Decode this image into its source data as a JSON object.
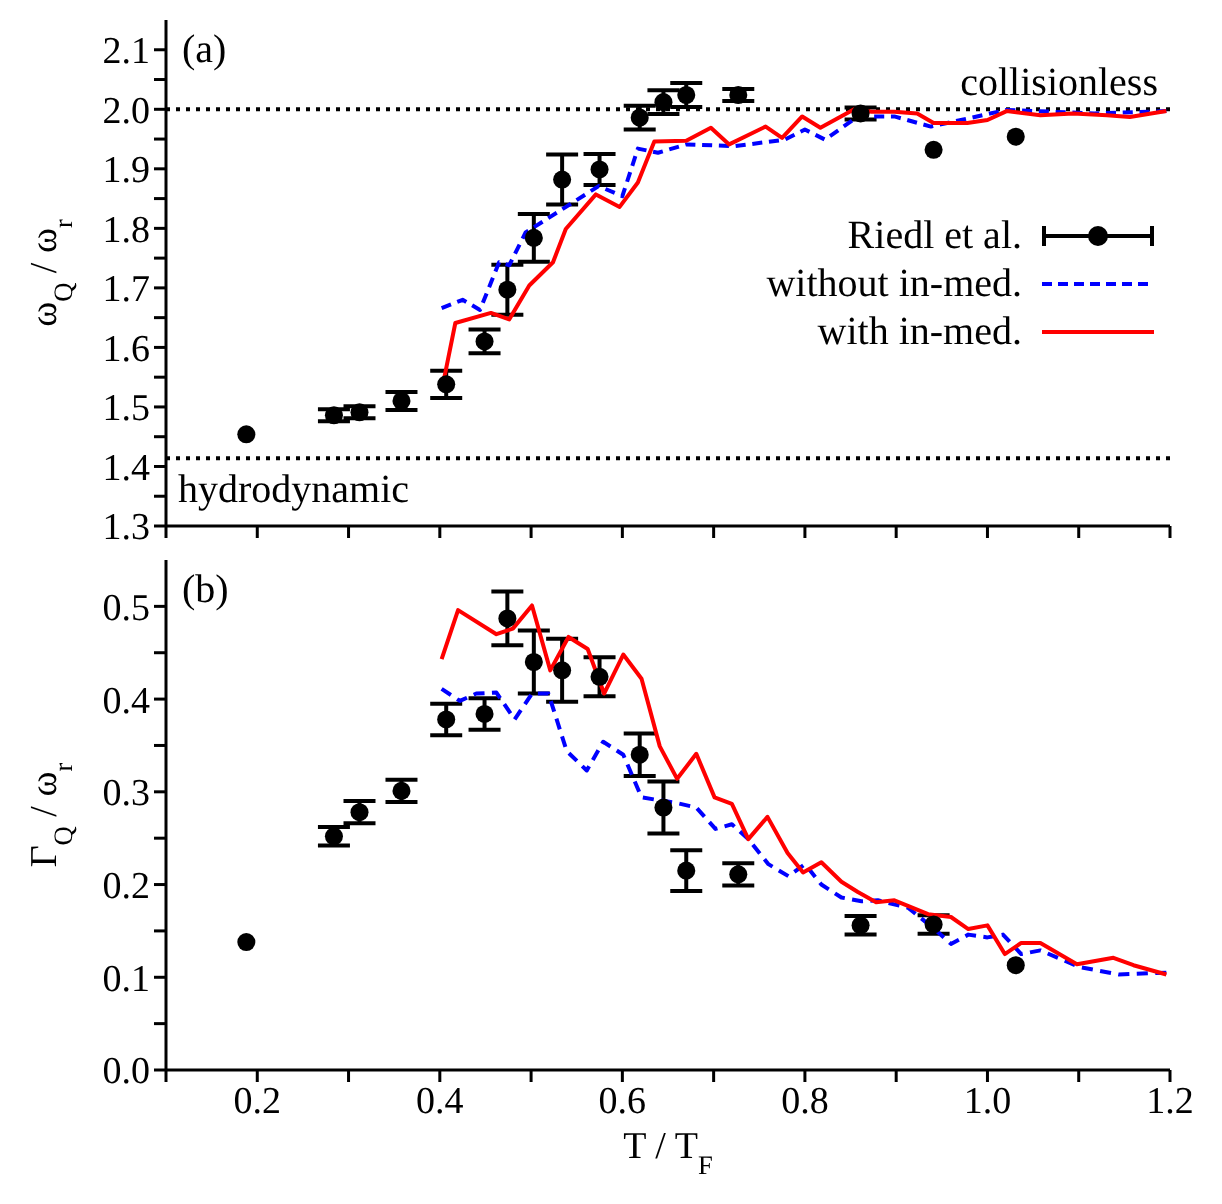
{
  "chart_data": [
    {
      "type": "line",
      "ylabel": "ω$_{Q}$ / ω$_{r}$",
      "annotations": [
        "(a)"
      ],
      "xlim": [
        0.1,
        1.2
      ],
      "xticks": [
        {
          "value": 0.1,
          "label": null
        },
        {
          "value": 0.2,
          "label": null
        },
        {
          "value": 0.3,
          "label": null
        },
        {
          "value": 0.4,
          "label": null
        },
        {
          "value": 0.5,
          "label": null
        },
        {
          "value": 0.6,
          "label": null
        },
        {
          "value": 0.7,
          "label": null
        },
        {
          "value": 0.8,
          "label": null
        },
        {
          "value": 0.9,
          "label": null
        },
        {
          "value": 1.0,
          "label": null
        },
        {
          "value": 1.1,
          "label": null
        },
        {
          "value": 1.2,
          "label": null
        }
      ],
      "ylim": [
        1.3,
        2.15
      ],
      "yticks": [
        {
          "value": 1.3,
          "label": "1.3"
        },
        {
          "value": 1.35,
          "label": null
        },
        {
          "value": 1.4,
          "label": "1.4"
        },
        {
          "value": 1.45,
          "label": null
        },
        {
          "value": 1.5,
          "label": "1.5"
        },
        {
          "value": 1.55,
          "label": null
        },
        {
          "value": 1.6,
          "label": "1.6"
        },
        {
          "value": 1.65,
          "label": null
        },
        {
          "value": 1.7,
          "label": "1.7"
        },
        {
          "value": 1.75,
          "label": null
        },
        {
          "value": 1.8,
          "label": "1.8"
        },
        {
          "value": 1.85,
          "label": null
        },
        {
          "value": 1.9,
          "label": "1.9"
        },
        {
          "value": 1.95,
          "label": null
        },
        {
          "value": 2.0,
          "label": "2.0"
        },
        {
          "value": 2.05,
          "label": null
        },
        {
          "value": 2.1,
          "label": "2.1"
        }
      ],
      "tick_labels": "y",
      "grid": false,
      "legend": "right",
      "ref_lines": [
        {
          "axis": "y",
          "value": 2.0,
          "label": "collisionless",
          "color": "#000000",
          "line_style": "dotted"
        },
        {
          "axis": "y",
          "value": 1.414,
          "label": "hydrodynamic",
          "color": "#000000",
          "line_style": "dotted"
        }
      ],
      "series": [
        {
          "name": "Riedl et al.",
          "type": "scatter",
          "color": "#000000",
          "marker": "circle",
          "x": [
            0.188,
            0.284,
            0.312,
            0.358,
            0.407,
            0.449,
            0.474,
            0.503,
            0.534,
            0.575,
            0.619,
            0.645,
            0.67,
            0.727,
            0.861,
            0.941,
            1.031
          ],
          "values": [
            1.454,
            1.486,
            1.491,
            1.51,
            1.538,
            1.61,
            1.697,
            1.784,
            1.882,
            1.899,
            1.986,
            2.012,
            2.024,
            2.024,
            1.993,
            1.932,
            1.954
          ],
          "errors": [
            null,
            0.01,
            0.01,
            0.015,
            0.023,
            0.02,
            0.042,
            0.04,
            0.042,
            0.026,
            0.02,
            0.02,
            0.02,
            0.01,
            0.01,
            null,
            null
          ]
        },
        {
          "name": "without in-med.",
          "type": "line",
          "color": "#0000ff",
          "marker": "none",
          "line_style": "dashed",
          "x": [
            0.402,
            0.425,
            0.444,
            0.465,
            0.476,
            0.494,
            0.534,
            0.574,
            0.6,
            0.617,
            0.639,
            0.67,
            0.723,
            0.778,
            0.8,
            0.822,
            0.858,
            0.898,
            0.938,
            0.971,
            1.021,
            1.117,
            1.196
          ],
          "values": [
            1.666,
            1.68,
            1.663,
            1.743,
            1.738,
            1.793,
            1.832,
            1.871,
            1.854,
            1.934,
            1.927,
            1.941,
            1.938,
            1.949,
            1.966,
            1.949,
            1.988,
            1.988,
            1.971,
            1.982,
            1.999,
            1.993,
            1.997
          ]
        },
        {
          "name": "with in-med.",
          "type": "line",
          "color": "#ff0000",
          "marker": "none",
          "line_style": "solid",
          "x": [
            0.402,
            0.417,
            0.456,
            0.476,
            0.498,
            0.524,
            0.538,
            0.571,
            0.597,
            0.617,
            0.635,
            0.67,
            0.697,
            0.717,
            0.757,
            0.775,
            0.797,
            0.817,
            0.855,
            0.873,
            0.898,
            0.923,
            0.941,
            0.978,
            1.0,
            1.021,
            1.058,
            1.094,
            1.131,
            1.156,
            1.196
          ],
          "values": [
            1.527,
            1.641,
            1.658,
            1.647,
            1.704,
            1.743,
            1.799,
            1.857,
            1.836,
            1.877,
            1.946,
            1.947,
            1.969,
            1.941,
            1.971,
            1.952,
            1.988,
            1.969,
            2.001,
            1.996,
            1.996,
            1.993,
            1.977,
            1.977,
            1.982,
            1.997,
            1.99,
            1.993,
            1.99,
            1.987,
            1.997
          ]
        }
      ]
    },
    {
      "type": "line",
      "xlabel": "T / T$_{F}$",
      "ylabel": "Γ$_{Q}$ / ω$_{r}$",
      "annotations": [
        "(b)"
      ],
      "xlim": [
        0.1,
        1.2
      ],
      "xticks": [
        {
          "value": 0.1,
          "label": null
        },
        {
          "value": 0.2,
          "label": "0.2"
        },
        {
          "value": 0.3,
          "label": null
        },
        {
          "value": 0.4,
          "label": "0.4"
        },
        {
          "value": 0.5,
          "label": null
        },
        {
          "value": 0.6,
          "label": "0.6"
        },
        {
          "value": 0.7,
          "label": null
        },
        {
          "value": 0.8,
          "label": "0.8"
        },
        {
          "value": 0.9,
          "label": null
        },
        {
          "value": 1.0,
          "label": "1.0"
        },
        {
          "value": 1.1,
          "label": null
        },
        {
          "value": 1.2,
          "label": "1.2"
        }
      ],
      "ylim": [
        0,
        0.55
      ],
      "yticks": [
        {
          "value": 0,
          "label": "0.0"
        },
        {
          "value": 0.05,
          "label": null
        },
        {
          "value": 0.1,
          "label": "0.1"
        },
        {
          "value": 0.15,
          "label": null
        },
        {
          "value": 0.2,
          "label": "0.2"
        },
        {
          "value": 0.25,
          "label": null
        },
        {
          "value": 0.3,
          "label": "0.3"
        },
        {
          "value": 0.35,
          "label": null
        },
        {
          "value": 0.4,
          "label": "0.4"
        },
        {
          "value": 0.45,
          "label": null
        },
        {
          "value": 0.5,
          "label": "0.5"
        }
      ],
      "grid": false,
      "series": [
        {
          "type": "scatter",
          "color": "#000000",
          "marker": "circle",
          "x": [
            0.188,
            0.284,
            0.312,
            0.358,
            0.407,
            0.449,
            0.474,
            0.503,
            0.534,
            0.575,
            0.619,
            0.645,
            0.67,
            0.727,
            0.861,
            0.941,
            1.031
          ],
          "values": [
            0.138,
            0.252,
            0.278,
            0.301,
            0.378,
            0.384,
            0.487,
            0.44,
            0.431,
            0.424,
            0.34,
            0.283,
            0.215,
            0.211,
            0.156,
            0.157,
            0.113
          ],
          "errors": [
            null,
            0.01,
            0.012,
            0.012,
            0.017,
            0.017,
            0.029,
            0.034,
            0.034,
            0.021,
            0.023,
            0.028,
            0.022,
            0.012,
            0.01,
            0.01,
            null
          ]
        },
        {
          "type": "line",
          "color": "#0000ff",
          "marker": "none",
          "line_style": "dashed",
          "x": [
            0.402,
            0.422,
            0.44,
            0.462,
            0.482,
            0.501,
            0.519,
            0.539,
            0.561,
            0.579,
            0.601,
            0.621,
            0.659,
            0.681,
            0.702,
            0.72,
            0.738,
            0.76,
            0.782,
            0.8,
            0.818,
            0.84,
            0.862,
            0.88,
            0.913,
            0.942,
            0.96,
            0.979,
            1.0,
            1.017,
            1.037,
            1.058,
            1.101,
            1.144,
            1.196
          ],
          "values": [
            0.411,
            0.398,
            0.406,
            0.407,
            0.378,
            0.406,
            0.406,
            0.344,
            0.323,
            0.354,
            0.34,
            0.294,
            0.288,
            0.283,
            0.26,
            0.265,
            0.249,
            0.222,
            0.209,
            0.222,
            0.2,
            0.186,
            0.182,
            0.183,
            0.175,
            0.152,
            0.136,
            0.146,
            0.143,
            0.146,
            0.125,
            0.129,
            0.111,
            0.103,
            0.105
          ]
        },
        {
          "type": "line",
          "color": "#ff0000",
          "marker": "none",
          "line_style": "solid",
          "x": [
            0.402,
            0.42,
            0.462,
            0.48,
            0.501,
            0.521,
            0.541,
            0.562,
            0.58,
            0.601,
            0.621,
            0.641,
            0.66,
            0.681,
            0.701,
            0.72,
            0.738,
            0.759,
            0.781,
            0.798,
            0.818,
            0.84,
            0.858,
            0.878,
            0.898,
            0.935,
            0.96,
            0.979,
            1.0,
            1.019,
            1.037,
            1.058,
            1.098,
            1.138,
            1.16,
            1.196
          ],
          "values": [
            0.443,
            0.496,
            0.47,
            0.476,
            0.501,
            0.431,
            0.467,
            0.454,
            0.406,
            0.448,
            0.422,
            0.349,
            0.314,
            0.341,
            0.294,
            0.287,
            0.249,
            0.273,
            0.234,
            0.213,
            0.224,
            0.203,
            0.192,
            0.181,
            0.183,
            0.168,
            0.165,
            0.152,
            0.156,
            0.125,
            0.137,
            0.137,
            0.114,
            0.121,
            0.113,
            0.103
          ]
        }
      ]
    }
  ]
}
